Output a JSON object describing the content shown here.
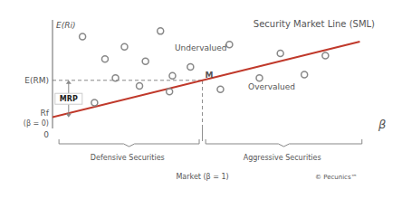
{
  "chart_data": {
    "type": "scatter",
    "title": "Security Market Line (SML)",
    "x_label": "β",
    "y_label": "E(Ri)",
    "xlim": [
      0,
      2.15
    ],
    "ylim": [
      0.05,
      1.02
    ],
    "tick_labels": false,
    "grid": false,
    "series": [
      {
        "type": "line",
        "color": "#c0392b",
        "x": [
          0.0,
          2.05
        ],
        "values": [
          0.15,
          0.8265
        ]
      },
      {
        "type": "scatter",
        "color": "#888888",
        "marker": "circle",
        "x": [
          0.2,
          0.48,
          0.72,
          0.35,
          0.62,
          0.92,
          1.18,
          1.52,
          1.82
        ],
        "values": [
          0.87,
          0.78,
          0.92,
          0.67,
          0.65,
          0.6,
          0.8,
          0.72,
          0.7
        ]
      },
      {
        "type": "scatter",
        "color": "#888888",
        "marker": "circle",
        "x": [
          0.28,
          0.42,
          0.58,
          0.78,
          0.8,
          1.12,
          1.38,
          1.68
        ],
        "values": [
          0.28,
          0.5,
          0.43,
          0.38,
          0.52,
          0.4,
          0.5,
          0.53
        ]
      }
    ],
    "rf": {
      "value": 0.15,
      "label": "Rf",
      "sublabel": "(β = 0)"
    },
    "market": {
      "x": 1.0,
      "y": 0.48,
      "label": "M",
      "y_label": "E(RM)",
      "x_label": "Market (β = 1)"
    },
    "annotations": {
      "mrp": "MRP",
      "undervalued": "Undervalued",
      "overvalued": "Overvalued",
      "origin": "0",
      "defensive": "Defensive Securities",
      "aggressive": "Aggressive Securities",
      "copyright": "© Pecunics™"
    }
  }
}
